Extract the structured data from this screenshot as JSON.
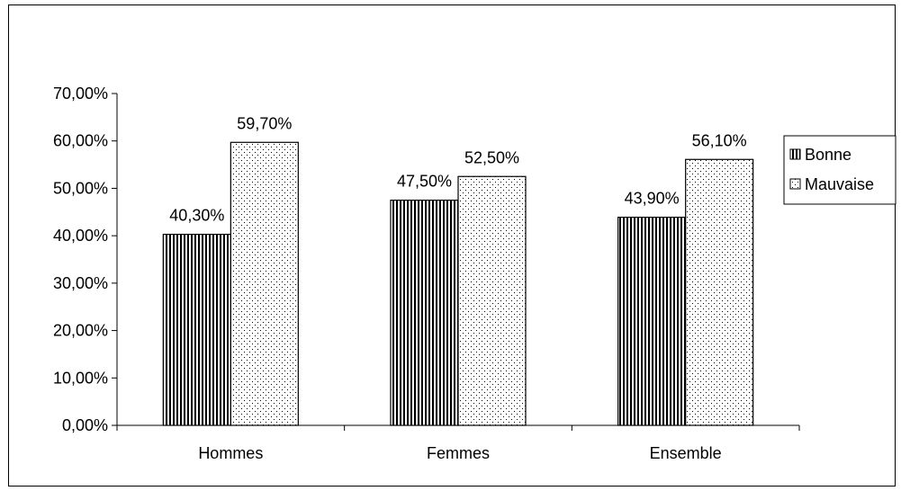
{
  "chart_data": {
    "type": "bar",
    "categories": [
      "Hommes",
      "Femmes",
      "Ensemble"
    ],
    "series": [
      {
        "name": "Bonne",
        "values": [
          40.3,
          47.5,
          43.9
        ],
        "labels": [
          "40,30%",
          "47,50%",
          "43,90%"
        ],
        "pattern": "vertical-stripes"
      },
      {
        "name": "Mauvaise",
        "values": [
          59.7,
          52.5,
          56.1
        ],
        "labels": [
          "59,70%",
          "52,50%",
          "56,10%"
        ],
        "pattern": "dots"
      }
    ],
    "ylim": [
      0,
      70
    ],
    "yticks": [
      0,
      10,
      20,
      30,
      40,
      50,
      60,
      70
    ],
    "ytick_labels": [
      "0,00%",
      "10,00%",
      "20,00%",
      "30,00%",
      "40,00%",
      "50,00%",
      "60,00%",
      "70,00%"
    ],
    "grid": false,
    "legend_position": "right",
    "colors": {
      "bar_stroke": "#000000",
      "bar_fill": "#ffffff",
      "pattern": "#000000"
    }
  }
}
